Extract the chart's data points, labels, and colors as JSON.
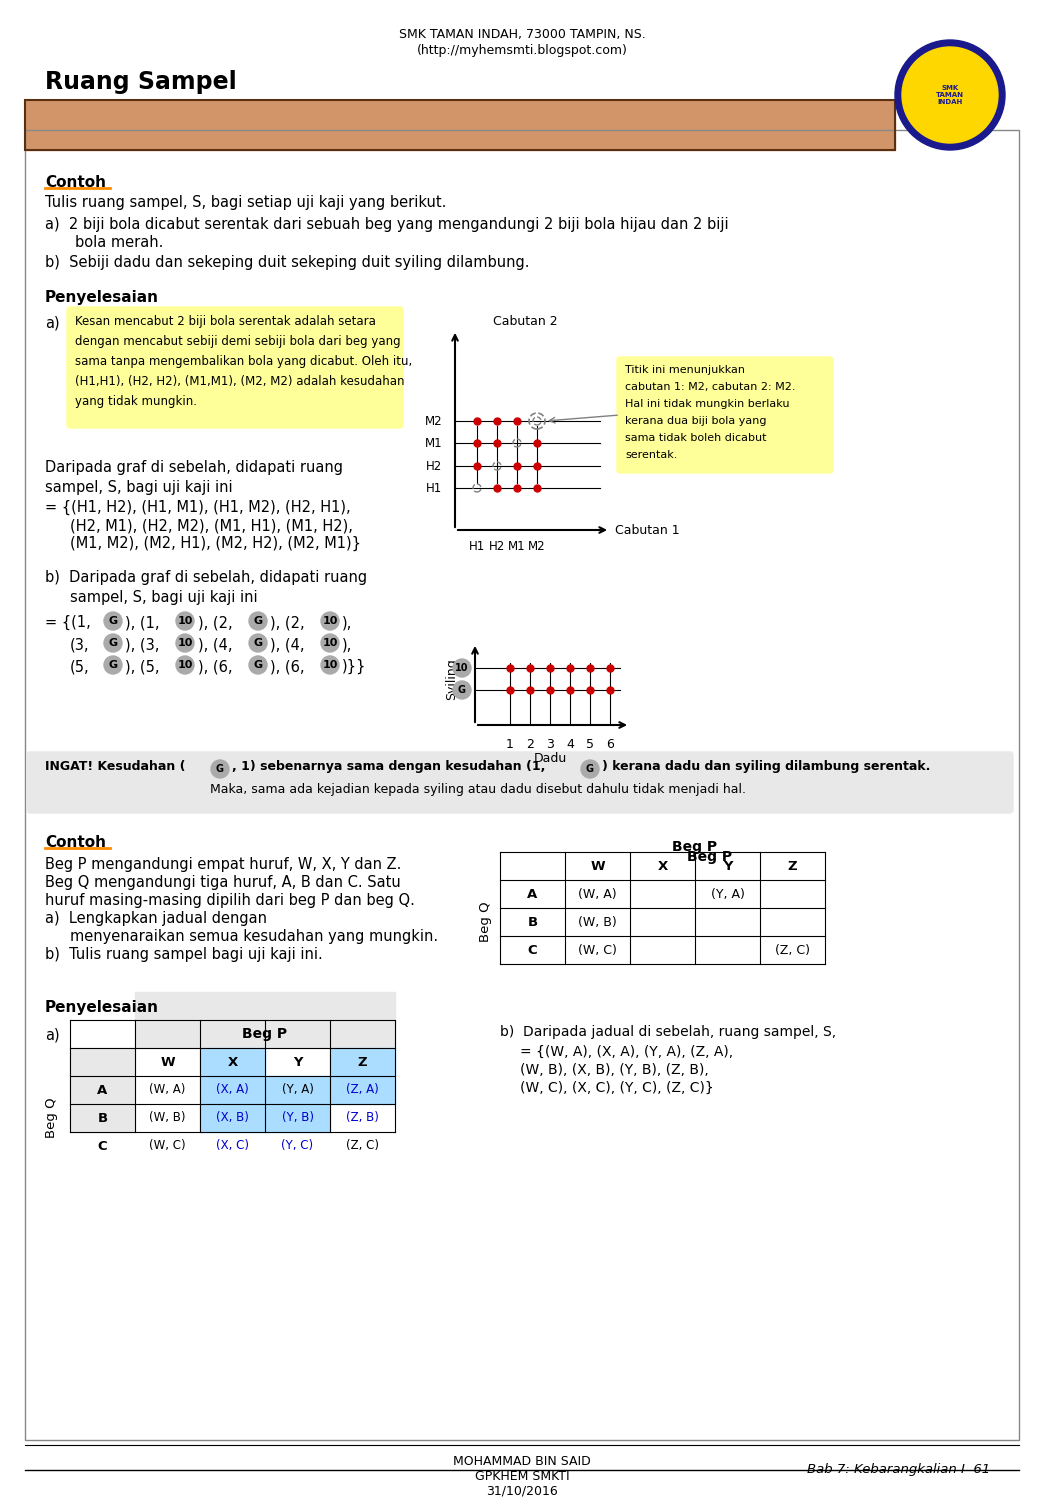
{
  "page_title": "SMK TAMAN INDAH, 73000 TAMPIN, NS.",
  "page_subtitle": "(http://myhemsmti.blogspot.com)",
  "section_title": "Ruang Sampel",
  "section_bg": "#D2956A",
  "contoh_label": "Contoh",
  "contoh_underline_color": "#FF8C00",
  "penyelesaian_label": "Penyelesaian",
  "body_bg": "#FFFFFF",
  "yellow_box_color": "#FFFF99",
  "gray_box_color": "#E8E8E8",
  "red_dot_color": "#CC0000",
  "footer_text": "MOHAMMAD BIN SAID\nGPKHEM SMKTI\n31/10/2016",
  "footer_right": "Bab 7: Kebarangkalian I  61",
  "logo_placeholder": true
}
